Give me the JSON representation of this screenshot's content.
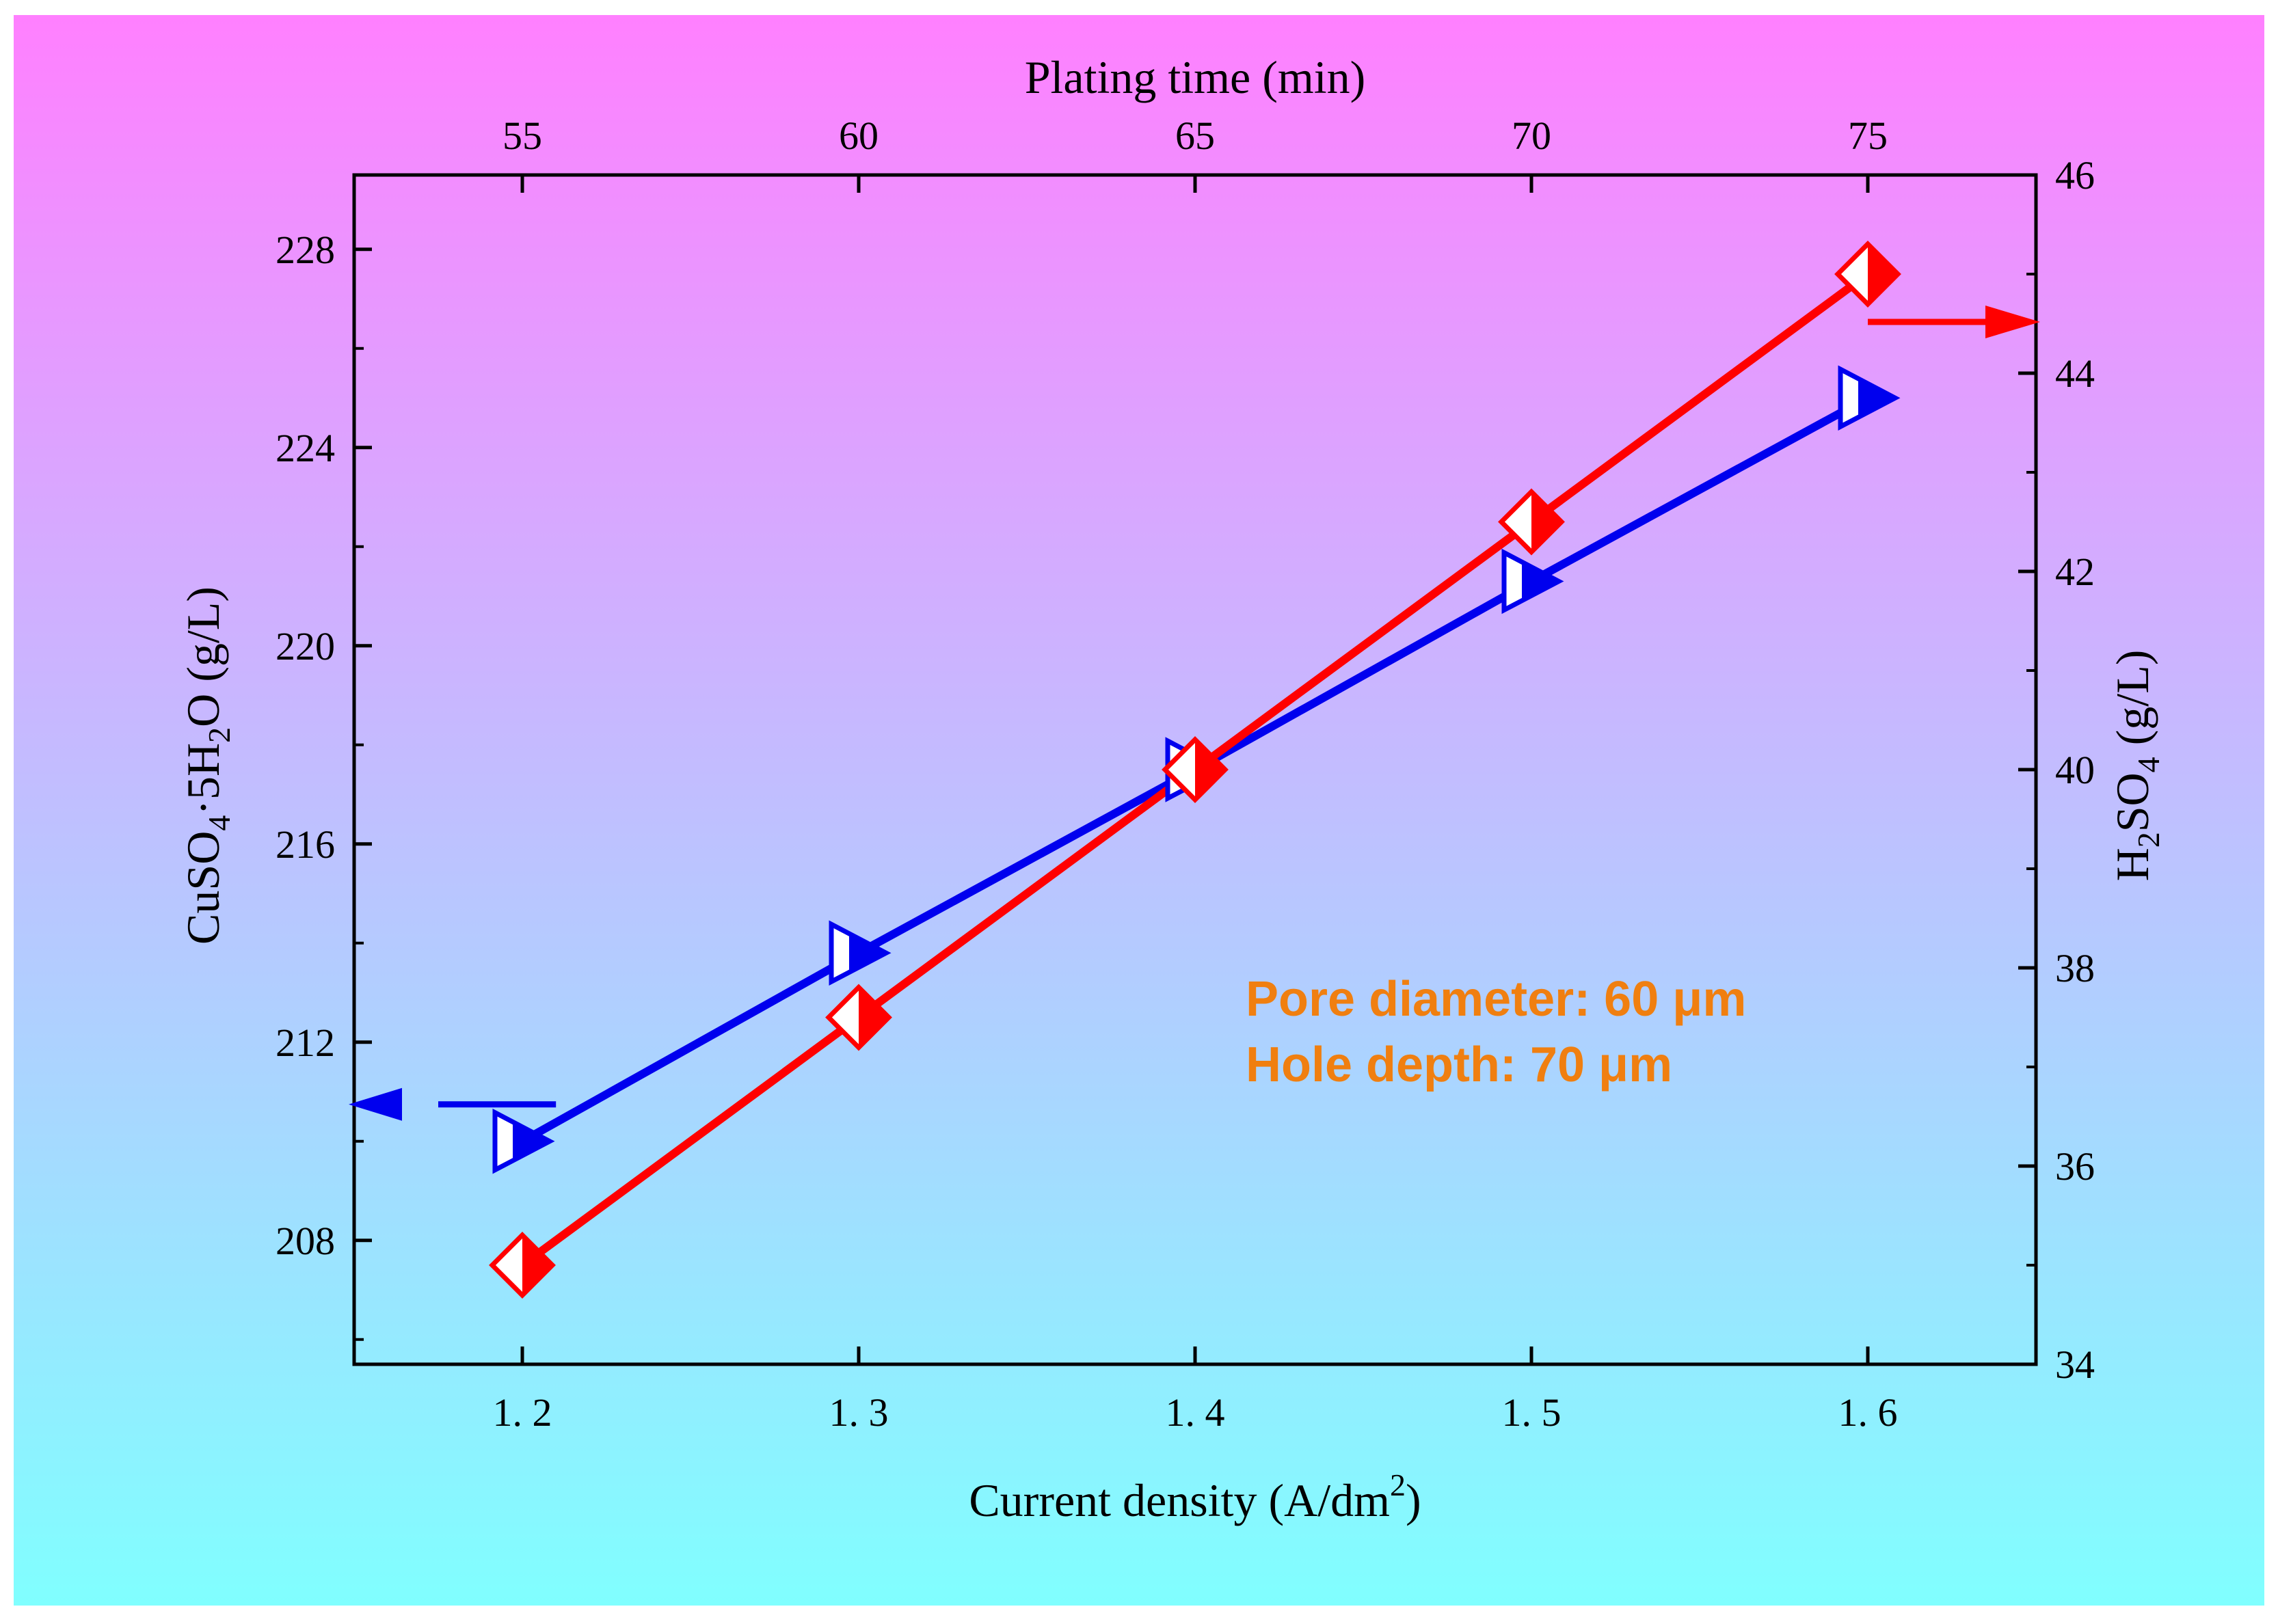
{
  "chart_data": {
    "type": "line",
    "x": [
      1.2,
      1.3,
      1.4,
      1.5,
      1.6
    ],
    "xlabel_parts": [
      "Current density (A/dm",
      "2",
      ")"
    ],
    "xlim": [
      1.15,
      1.65
    ],
    "x_ticks": [
      1.2,
      1.3,
      1.4,
      1.5,
      1.6
    ],
    "x_tick_labels": [
      "1. 2",
      "1. 3",
      "1. 4",
      "1. 5",
      "1. 6"
    ],
    "x2label": "Plating time (min)",
    "x2_ticks": [
      55,
      60,
      65,
      70,
      75
    ],
    "x2_tick_labels": [
      "55",
      "60",
      "65",
      "70",
      "75"
    ],
    "y_left": {
      "label_parts": [
        "CuSO",
        "4",
        "·5H",
        "2",
        "O (g/L)"
      ],
      "ylim": [
        205.5,
        229.5
      ],
      "ticks": [
        208,
        212,
        216,
        220,
        224,
        228
      ],
      "tick_labels": [
        "208",
        "212",
        "216",
        "220",
        "224",
        "228"
      ]
    },
    "y_right": {
      "label_parts": [
        "H",
        "2",
        "SO",
        "4",
        " (g/L)"
      ],
      "ylim": [
        34,
        46
      ],
      "ticks": [
        34,
        36,
        38,
        40,
        42,
        44,
        46
      ],
      "tick_labels": [
        "34",
        "36",
        "38",
        "40",
        "42",
        "44",
        "46"
      ]
    },
    "series": [
      {
        "name": "CuSO4·5H2O",
        "axis": "left",
        "color": "#0000ee",
        "marker": "triangle-right-half-filled",
        "values": [
          210,
          213.8,
          217.5,
          221.3,
          225
        ]
      },
      {
        "name": "H2SO4",
        "axis": "right",
        "color": "#ff0000",
        "marker": "diamond-half-filled",
        "values": [
          35,
          37.5,
          40,
          42.5,
          45
        ]
      }
    ],
    "annotations": [
      "Pore diameter: 60 μm",
      "Hole depth: 70 μm"
    ],
    "annotation_color": "#f07f10",
    "background_gradient": [
      "#ff80ff",
      "#80ffff"
    ],
    "grid": false
  }
}
